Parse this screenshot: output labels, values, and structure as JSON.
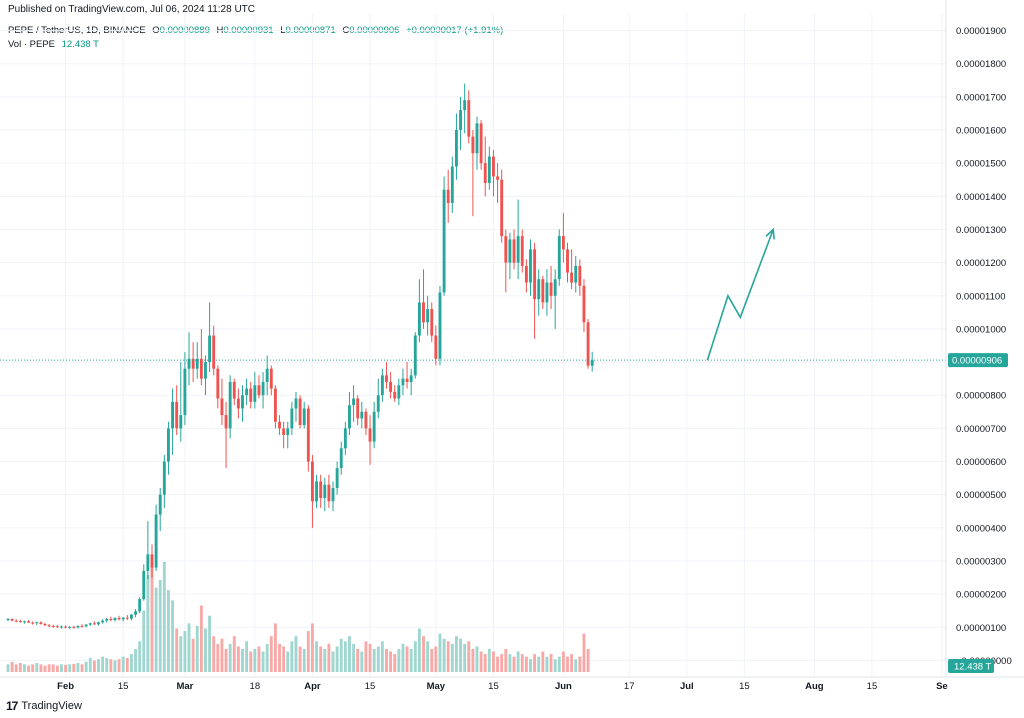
{
  "header": {
    "published": "Published on TradingView.com, Jul 06, 2024 11:28 UTC"
  },
  "legend": {
    "symbol": "PEPE / TetherUS, 1D, BINANCE",
    "o_label": "O",
    "o_value": "0.00000889",
    "h_label": "H",
    "h_value": "0.00000931",
    "l_label": "L",
    "l_value": "0.00000871",
    "c_label": "C",
    "c_value": "0.00000906",
    "change": "+0.00000017 (+1.91%)",
    "vol_label": "Vol · PEPE",
    "vol_value": "12.438 T"
  },
  "footer": {
    "brand": "TradingView",
    "logo_icon": "tradingview-logo-icon"
  },
  "colors": {
    "up": "#26a69a",
    "down": "#ef5350",
    "up_vol": "#9fd6cf",
    "down_vol": "#f7a9a7",
    "accent": "#089981",
    "grid": "#f0f3fa",
    "axis_text": "#131722"
  },
  "chart_data": {
    "type": "candlestick",
    "symbol": "PEPE / TetherUS",
    "interval": "1D",
    "exchange": "BINANCE",
    "y_axis": {
      "ylim": [
        -5e-07,
        1.95e-05
      ],
      "ticks": [
        -0.0,
        1e-06,
        2e-06,
        3e-06,
        4e-06,
        5e-06,
        6e-06,
        7e-06,
        8e-06,
        9e-06,
        1e-05,
        1.1e-05,
        1.2e-05,
        1.3e-05,
        1.4e-05,
        1.5e-05,
        1.6e-05,
        1.7e-05,
        1.8e-05,
        1.9e-05
      ],
      "tick_labels": [
        "−0.00000000",
        "0.00000100",
        "0.00000200",
        "0.00000300",
        "0.00000400",
        "0.00000500",
        "0.00000600",
        "0.00000700",
        "0.00000800",
        "0.00000900",
        "0.00001000",
        "0.00001100",
        "0.00001200",
        "0.00001300",
        "0.00001400",
        "0.00001500",
        "0.00001600",
        "0.00001700",
        "0.00001800",
        "0.00001900"
      ]
    },
    "x_axis": {
      "tick_labels": [
        "Feb",
        "15",
        "Mar",
        "18",
        "Apr",
        "15",
        "May",
        "15",
        "Jun",
        "17",
        "Jul",
        "15",
        "Aug",
        "15",
        "Se"
      ],
      "tick_dates": [
        "2024-02-01",
        "2024-02-15",
        "2024-03-01",
        "2024-03-18",
        "2024-04-01",
        "2024-04-15",
        "2024-05-01",
        "2024-05-15",
        "2024-06-01",
        "2024-06-17",
        "2024-07-01",
        "2024-07-15",
        "2024-08-01",
        "2024-08-15",
        "2024-09-01"
      ],
      "range": [
        "2024-01-18",
        "2024-09-02"
      ]
    },
    "last_price": 9.06e-06,
    "last_price_label": "0.00000906",
    "volume_label": "12.438 T",
    "start_date": "2024-01-18",
    "candles": [
      [
        1.23e-06,
        1.28e-06,
        1.18e-06,
        1.25e-06
      ],
      [
        1.25e-06,
        1.27e-06,
        1.18e-06,
        1.2e-06
      ],
      [
        1.2e-06,
        1.24e-06,
        1.15e-06,
        1.19e-06
      ],
      [
        1.19e-06,
        1.23e-06,
        1.14e-06,
        1.16e-06
      ],
      [
        1.16e-06,
        1.2e-06,
        1.11e-06,
        1.18e-06
      ],
      [
        1.18e-06,
        1.22e-06,
        1.13e-06,
        1.14e-06
      ],
      [
        1.14e-06,
        1.18e-06,
        1.08e-06,
        1.12e-06
      ],
      [
        1.12e-06,
        1.17e-06,
        1.07e-06,
        1.15e-06
      ],
      [
        1.15e-06,
        1.18e-06,
        1.08e-06,
        1.1e-06
      ],
      [
        1.1e-06,
        1.13e-06,
        1.04e-06,
        1.06e-06
      ],
      [
        1.06e-06,
        1.1e-06,
        1e-06,
        1.04e-06
      ],
      [
        1.04e-06,
        1.08e-06,
        9.9e-07,
        1.03e-06
      ],
      [
        1.03e-06,
        1.07e-06,
        9.8e-07,
        1e-06
      ],
      [
        1e-06,
        1.05e-06,
        9.6e-07,
        1.02e-06
      ],
      [
        1.02e-06,
        1.06e-06,
        9.7e-07,
        9.9e-07
      ],
      [
        9.9e-07,
        1.04e-06,
        9.5e-07,
        1.01e-06
      ],
      [
        1.01e-06,
        1.05e-06,
        9.6e-07,
        1e-06
      ],
      [
        1e-06,
        1.06e-06,
        9.6e-07,
        1.04e-06
      ],
      [
        1.04e-06,
        1.09e-06,
        9.9e-07,
        1.03e-06
      ],
      [
        1.03e-06,
        1.1e-06,
        1e-06,
        1.08e-06
      ],
      [
        1.08e-06,
        1.14e-06,
        1.04e-06,
        1.12e-06
      ],
      [
        1.12e-06,
        1.18e-06,
        1.07e-06,
        1.09e-06
      ],
      [
        1.09e-06,
        1.17e-06,
        1.05e-06,
        1.15e-06
      ],
      [
        1.15e-06,
        1.24e-06,
        1.11e-06,
        1.2e-06
      ],
      [
        1.2e-06,
        1.28e-06,
        1.14e-06,
        1.25e-06
      ],
      [
        1.25e-06,
        1.32e-06,
        1.18e-06,
        1.22e-06
      ],
      [
        1.22e-06,
        1.3e-06,
        1.17e-06,
        1.28e-06
      ],
      [
        1.28e-06,
        1.35e-06,
        1.21e-06,
        1.24e-06
      ],
      [
        1.24e-06,
        1.31e-06,
        1.18e-06,
        1.29e-06
      ],
      [
        1.29e-06,
        1.37e-06,
        1.22e-06,
        1.26e-06
      ],
      [
        1.26e-06,
        1.4e-06,
        1.21e-06,
        1.38e-06
      ],
      [
        1.38e-06,
        1.55e-06,
        1.3e-06,
        1.48e-06
      ],
      [
        1.48e-06,
        1.9e-06,
        1.43e-06,
        1.85e-06
      ],
      [
        1.85e-06,
        2.9e-06,
        1.8e-06,
        2.7e-06
      ],
      [
        2.7e-06,
        4.2e-06,
        2.45e-06,
        3.2e-06
      ],
      [
        3.2e-06,
        3.5e-06,
        2.5e-06,
        2.8e-06
      ],
      [
        2.8e-06,
        4.7e-06,
        2.7e-06,
        4.4e-06
      ],
      [
        4.4e-06,
        5.2e-06,
        3.9e-06,
        5e-06
      ],
      [
        5e-06,
        6.2e-06,
        4.6e-06,
        6e-06
      ],
      [
        6e-06,
        7.2e-06,
        5.6e-06,
        7e-06
      ],
      [
        7e-06,
        8.2e-06,
        6.2e-06,
        7.8e-06
      ],
      [
        7.8e-06,
        8.3e-06,
        6.8e-06,
        7e-06
      ],
      [
        7e-06,
        9e-06,
        6.6e-06,
        7.4e-06
      ],
      [
        7.4e-06,
        9.3e-06,
        7.1e-06,
        8.8e-06
      ],
      [
        8.8e-06,
        9.9e-06,
        8.3e-06,
        9.1e-06
      ],
      [
        9.1e-06,
        9.6e-06,
        8.4e-06,
        8.8e-06
      ],
      [
        8.8e-06,
        9.6e-06,
        8.5e-06,
        9.1e-06
      ],
      [
        9.1e-06,
        1e-05,
        8.3e-06,
        8.5e-06
      ],
      [
        8.5e-06,
        9.2e-06,
        8e-06,
        9e-06
      ],
      [
        9e-06,
        1.08e-05,
        8.7e-06,
        9.8e-06
      ],
      [
        9.8e-06,
        1.01e-05,
        8.6e-06,
        8.8e-06
      ],
      [
        8.8e-06,
        8.9e-06,
        7.6e-06,
        7.9e-06
      ],
      [
        7.9e-06,
        8.5e-06,
        7.1e-06,
        7.4e-06
      ],
      [
        7.4e-06,
        7.8e-06,
        5.8e-06,
        7e-06
      ],
      [
        7e-06,
        8.6e-06,
        6.7e-06,
        8.4e-06
      ],
      [
        8.4e-06,
        8.5e-06,
        7.7e-06,
        7.9e-06
      ],
      [
        7.9e-06,
        8.2e-06,
        7.3e-06,
        7.6e-06
      ],
      [
        7.6e-06,
        8.3e-06,
        7.2e-06,
        8e-06
      ],
      [
        8e-06,
        8.5e-06,
        7.7e-06,
        8.2e-06
      ],
      [
        8.2e-06,
        8.4e-06,
        7.6e-06,
        7.8e-06
      ],
      [
        7.8e-06,
        8.7e-06,
        7.6e-06,
        8.3e-06
      ],
      [
        8.3e-06,
        8.6e-06,
        7.9e-06,
        8e-06
      ],
      [
        8e-06,
        8.7e-06,
        7.6e-06,
        8.4e-06
      ],
      [
        8.4e-06,
        9.2e-06,
        8e-06,
        8.8e-06
      ],
      [
        8.8e-06,
        8.9e-06,
        8e-06,
        8.2e-06
      ],
      [
        8.2e-06,
        8.3e-06,
        7e-06,
        7.2e-06
      ],
      [
        7.2e-06,
        7.4e-06,
        6.8e-06,
        7e-06
      ],
      [
        7e-06,
        7.2e-06,
        6.4e-06,
        6.8e-06
      ],
      [
        6.8e-06,
        7.2e-06,
        6.4e-06,
        7e-06
      ],
      [
        7e-06,
        7.8e-06,
        6.8e-06,
        7.6e-06
      ],
      [
        7.6e-06,
        8.1e-06,
        7.2e-06,
        7.9e-06
      ],
      [
        7.9e-06,
        8e-06,
        7e-06,
        7.1e-06
      ],
      [
        7.1e-06,
        7.8e-06,
        7e-06,
        7.6e-06
      ],
      [
        7.6e-06,
        7.7e-06,
        5.7e-06,
        6e-06
      ],
      [
        6e-06,
        6.2e-06,
        4e-06,
        4.8e-06
      ],
      [
        4.8e-06,
        5.6e-06,
        4.6e-06,
        5.4e-06
      ],
      [
        5.4e-06,
        5.6e-06,
        4.6e-06,
        4.9e-06
      ],
      [
        4.9e-06,
        5.5e-06,
        4.5e-06,
        5.3e-06
      ],
      [
        5.3e-06,
        5.6e-06,
        4.6e-06,
        4.8e-06
      ],
      [
        4.8e-06,
        5.4e-06,
        4.5e-06,
        5.2e-06
      ],
      [
        5.2e-06,
        6e-06,
        5e-06,
        5.8e-06
      ],
      [
        5.8e-06,
        6.6e-06,
        5.6e-06,
        6.4e-06
      ],
      [
        6.4e-06,
        7.2e-06,
        6.2e-06,
        7e-06
      ],
      [
        7e-06,
        8.1e-06,
        6.8e-06,
        7.7e-06
      ],
      [
        7.7e-06,
        8.3e-06,
        7.2e-06,
        7.9e-06
      ],
      [
        7.9e-06,
        8e-06,
        7.1e-06,
        7.3e-06
      ],
      [
        7.3e-06,
        7.8e-06,
        7e-06,
        7.5e-06
      ],
      [
        7.5e-06,
        7.6e-06,
        6.8e-06,
        7e-06
      ],
      [
        7e-06,
        7.4e-06,
        5.9e-06,
        6.6e-06
      ],
      [
        6.6e-06,
        7.8e-06,
        6.4e-06,
        7.5e-06
      ],
      [
        7.5e-06,
        8.5e-06,
        7.3e-06,
        8e-06
      ],
      [
        8e-06,
        8.8e-06,
        7.8e-06,
        8.6e-06
      ],
      [
        8.6e-06,
        9e-06,
        8.2e-06,
        8.4e-06
      ],
      [
        8.4e-06,
        8.7e-06,
        7.9e-06,
        8.1e-06
      ],
      [
        8.1e-06,
        8.3e-06,
        7.8e-06,
        7.9e-06
      ],
      [
        7.9e-06,
        8.5e-06,
        7.7e-06,
        8.3e-06
      ],
      [
        8.3e-06,
        8.8e-06,
        8e-06,
        8.5e-06
      ],
      [
        8.5e-06,
        9e-06,
        8.2e-06,
        8.4e-06
      ],
      [
        8.4e-06,
        8.8e-06,
        8e-06,
        8.6e-06
      ],
      [
        8.6e-06,
        9.9e-06,
        8.5e-06,
        9.8e-06
      ],
      [
        9.8e-06,
        1.15e-05,
        9.6e-06,
        1.08e-05
      ],
      [
        1.08e-05,
        1.18e-05,
        1e-05,
        1.02e-05
      ],
      [
        1.02e-05,
        1.1e-05,
        9.8e-06,
        1.06e-05
      ],
      [
        1.06e-05,
        1.08e-05,
        9.6e-06,
        9.8e-06
      ],
      [
        9.8e-06,
        1.01e-05,
        8.9e-06,
        9.1e-06
      ],
      [
        9.1e-06,
        1.13e-05,
        8.9e-06,
        1.11e-05
      ],
      [
        1.11e-05,
        1.46e-05,
        1.1e-05,
        1.42e-05
      ],
      [
        1.42e-05,
        1.48e-05,
        1.32e-05,
        1.38e-05
      ],
      [
        1.38e-05,
        1.52e-05,
        1.35e-05,
        1.49e-05
      ],
      [
        1.49e-05,
        1.65e-05,
        1.45e-05,
        1.6e-05
      ],
      [
        1.6e-05,
        1.7e-05,
        1.54e-05,
        1.66e-05
      ],
      [
        1.66e-05,
        1.74e-05,
        1.59e-05,
        1.69e-05
      ],
      [
        1.69e-05,
        1.72e-05,
        1.56e-05,
        1.58e-05
      ],
      [
        1.58e-05,
        1.6e-05,
        1.34e-05,
        1.53e-05
      ],
      [
        1.53e-05,
        1.64e-05,
        1.48e-05,
        1.62e-05
      ],
      [
        1.62e-05,
        1.63e-05,
        1.48e-05,
        1.5e-05
      ],
      [
        1.5e-05,
        1.58e-05,
        1.4e-05,
        1.44e-05
      ],
      [
        1.44e-05,
        1.55e-05,
        1.42e-05,
        1.52e-05
      ],
      [
        1.52e-05,
        1.54e-05,
        1.4e-05,
        1.46e-05
      ],
      [
        1.46e-05,
        1.5e-05,
        1.38e-05,
        1.45e-05
      ],
      [
        1.45e-05,
        1.48e-05,
        1.26e-05,
        1.28e-05
      ],
      [
        1.28e-05,
        1.3e-05,
        1.11e-05,
        1.2e-05
      ],
      [
        1.2e-05,
        1.29e-05,
        1.15e-05,
        1.27e-05
      ],
      [
        1.27e-05,
        1.3e-05,
        1.18e-05,
        1.2e-05
      ],
      [
        1.2e-05,
        1.39e-05,
        1.15e-05,
        1.28e-05
      ],
      [
        1.28e-05,
        1.3e-05,
        1.17e-05,
        1.19e-05
      ],
      [
        1.19e-05,
        1.21e-05,
        1.11e-05,
        1.14e-05
      ],
      [
        1.14e-05,
        1.27e-05,
        1.1e-05,
        1.24e-05
      ],
      [
        1.24e-05,
        1.26e-05,
        9.7e-06,
        1.09e-05
      ],
      [
        1.09e-05,
        1.18e-05,
        1.04e-05,
        1.15e-05
      ],
      [
        1.15e-05,
        1.16e-05,
        1.06e-05,
        1.08e-05
      ],
      [
        1.08e-05,
        1.18e-05,
        1.04e-05,
        1.14e-05
      ],
      [
        1.14e-05,
        1.19e-05,
        1.06e-05,
        1.1e-05
      ],
      [
        1.1e-05,
        1.18e-05,
        1e-05,
        1.15e-05
      ],
      [
        1.15e-05,
        1.3e-05,
        1.13e-05,
        1.28e-05
      ],
      [
        1.28e-05,
        1.35e-05,
        1.2e-05,
        1.24e-05
      ],
      [
        1.24e-05,
        1.26e-05,
        1.14e-05,
        1.17e-05
      ],
      [
        1.17e-05,
        1.24e-05,
        1.12e-05,
        1.14e-05
      ],
      [
        1.14e-05,
        1.22e-05,
        1.11e-05,
        1.19e-05
      ],
      [
        1.19e-05,
        1.21e-05,
        1.1e-05,
        1.13e-05
      ],
      [
        1.13e-05,
        1.15e-05,
        9.9e-06,
        1.02e-05
      ],
      [
        1.02e-05,
        1.03e-05,
        8.8e-06,
        8.89e-06
      ],
      [
        8.89e-06,
        9.31e-06,
        8.71e-06,
        9.06e-06
      ]
    ],
    "volume_direction_note_omitted": true,
    "volumes": [
      0.3,
      0.4,
      0.3,
      0.35,
      0.3,
      0.25,
      0.3,
      0.35,
      0.3,
      0.25,
      0.3,
      0.3,
      0.25,
      0.3,
      0.28,
      0.3,
      0.32,
      0.35,
      0.3,
      0.4,
      0.55,
      0.45,
      0.5,
      0.6,
      0.55,
      0.5,
      0.45,
      0.5,
      0.6,
      0.55,
      0.7,
      0.9,
      1.2,
      2.4,
      3.8,
      4.1,
      3.3,
      3.6,
      4.3,
      3.2,
      2.8,
      1.7,
      1.4,
      1.6,
      1.9,
      1.3,
      1.8,
      2.6,
      1.7,
      2.2,
      1.4,
      1.1,
      1.3,
      0.9,
      1.1,
      1.4,
      1.0,
      0.9,
      1.2,
      0.8,
      0.9,
      1.0,
      0.8,
      1.1,
      1.4,
      1.9,
      1.1,
      1.0,
      0.8,
      1.2,
      1.4,
      1.0,
      0.9,
      1.6,
      1.9,
      1.2,
      1.0,
      0.9,
      1.1,
      0.8,
      1.0,
      1.3,
      1.2,
      1.4,
      1.1,
      0.9,
      0.8,
      1.2,
      1.1,
      0.9,
      1.0,
      1.2,
      0.9,
      0.8,
      0.7,
      0.9,
      1.1,
      1.0,
      0.9,
      1.2,
      1.7,
      1.4,
      1.2,
      0.9,
      1.0,
      1.5,
      1.3,
      1.2,
      1.1,
      1.4,
      1.3,
      1.1,
      1.2,
      0.9,
      1.0,
      0.8,
      0.7,
      0.9,
      0.8,
      0.6,
      0.7,
      0.9,
      0.7,
      0.6,
      0.8,
      0.7,
      0.6,
      0.5,
      0.7,
      0.6,
      0.8,
      0.6,
      0.7,
      0.5,
      0.6,
      0.8,
      0.6,
      0.7,
      0.5,
      0.6,
      1.5,
      0.9
    ],
    "volume_max": 4.3,
    "projection_arrow": [
      [
        "2024-07-06",
        9.06e-06
      ],
      [
        "2024-07-11",
        1.1e-05
      ],
      [
        "2024-07-14",
        1.035e-05
      ],
      [
        "2024-07-22",
        1.3e-05
      ]
    ]
  }
}
